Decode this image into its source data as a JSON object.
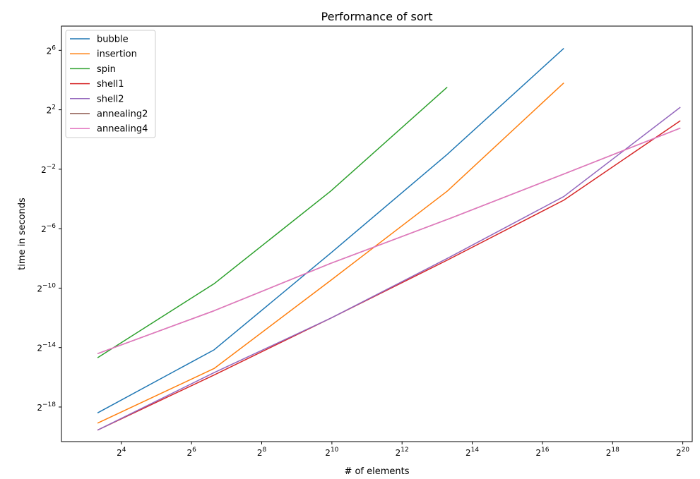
{
  "chart_data": {
    "type": "line",
    "title": "Performance of sort",
    "xlabel": "# of elements",
    "ylabel": "time in seconds",
    "x_scale": "log2",
    "y_scale": "log2",
    "xlim": [
      4.9,
      1264000
    ],
    "ylim": [
      7.6e-07,
      198
    ],
    "x_ticks": [
      {
        "value": 16,
        "base": "2",
        "exp": "4"
      },
      {
        "value": 64,
        "base": "2",
        "exp": "6"
      },
      {
        "value": 256,
        "base": "2",
        "exp": "8"
      },
      {
        "value": 1024,
        "base": "2",
        "exp": "10"
      },
      {
        "value": 4096,
        "base": "2",
        "exp": "12"
      },
      {
        "value": 16384,
        "base": "2",
        "exp": "14"
      },
      {
        "value": 65536,
        "base": "2",
        "exp": "16"
      },
      {
        "value": 262144,
        "base": "2",
        "exp": "18"
      },
      {
        "value": 1048576,
        "base": "2",
        "exp": "20"
      }
    ],
    "y_ticks": [
      {
        "value": 3.8147e-06,
        "base": "2",
        "exp": "−18"
      },
      {
        "value": 6.1035e-05,
        "base": "2",
        "exp": "−14"
      },
      {
        "value": 0.00097656,
        "base": "2",
        "exp": "−10"
      },
      {
        "value": 0.015625,
        "base": "2",
        "exp": "−6"
      },
      {
        "value": 0.25,
        "base": "2",
        "exp": "−2"
      },
      {
        "value": 4,
        "base": "2",
        "exp": "2"
      },
      {
        "value": 64,
        "base": "2",
        "exp": "6"
      }
    ],
    "grid": false,
    "legend_position": "top-left",
    "series": [
      {
        "name": "bubble",
        "color": "#1f77b4",
        "x": [
          10,
          100,
          1000,
          10000,
          100000
        ],
        "y": [
          2.9e-06,
          5.5e-05,
          0.005,
          0.5,
          70
        ]
      },
      {
        "name": "insertion",
        "color": "#ff7f0e",
        "x": [
          10,
          100,
          1000,
          10000,
          100000
        ],
        "y": [
          1.8e-06,
          2.3e-05,
          0.0014,
          0.09,
          14
        ]
      },
      {
        "name": "spin",
        "color": "#2ca02c",
        "x": [
          10,
          100,
          1000,
          10000
        ],
        "y": [
          3.8e-05,
          0.0012,
          0.09,
          11.5
        ]
      },
      {
        "name": "shell1",
        "color": "#d62728",
        "x": [
          10,
          100,
          1000,
          10000,
          100000,
          1000000
        ],
        "y": [
          1.3e-06,
          1.7e-05,
          0.00024,
          0.0036,
          0.059,
          2.4
        ]
      },
      {
        "name": "shell2",
        "color": "#9467bd",
        "x": [
          10,
          100,
          1000,
          10000,
          100000,
          1000000
        ],
        "y": [
          1.3e-06,
          1.9e-05,
          0.00024,
          0.0039,
          0.07,
          4.5
        ]
      },
      {
        "name": "annealing2",
        "color": "#8c564b",
        "x": [
          10,
          100,
          1000,
          10000,
          100000,
          1000000
        ],
        "y": [
          4.6e-05,
          0.00034,
          0.0031,
          0.024,
          0.2,
          1.7
        ]
      },
      {
        "name": "annealing4",
        "color": "#e377c2",
        "x": [
          10,
          100,
          1000,
          10000,
          100000,
          1000000
        ],
        "y": [
          4.6e-05,
          0.00034,
          0.0031,
          0.024,
          0.2,
          1.7
        ]
      }
    ]
  }
}
